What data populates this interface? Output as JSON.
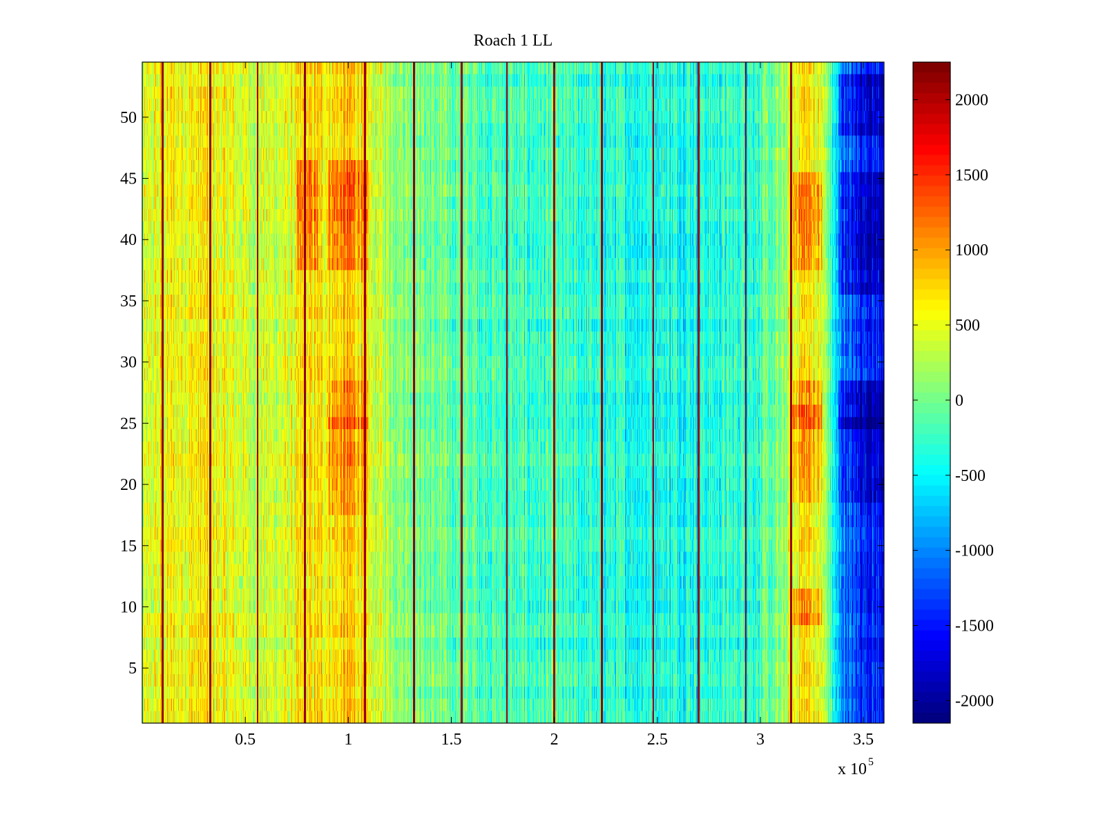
{
  "chart_data": {
    "type": "heatmap",
    "title": "Roach 1 LL",
    "xlabel": "",
    "ylabel": "",
    "x_multiplier_label": "x 10",
    "x_multiplier_exponent": "5",
    "xlim": [
      0,
      3.6
    ],
    "ylim": [
      0.5,
      54.5
    ],
    "x_ticks": [
      0.5,
      1,
      1.5,
      2,
      2.5,
      3,
      3.5
    ],
    "x_tick_labels": [
      "0.5",
      "1",
      "1.5",
      "2",
      "2.5",
      "3",
      "3.5"
    ],
    "y_ticks": [
      5,
      10,
      15,
      20,
      25,
      30,
      35,
      40,
      45,
      50
    ],
    "y_tick_labels": [
      "5",
      "10",
      "15",
      "20",
      "25",
      "30",
      "35",
      "40",
      "45",
      "50"
    ],
    "rows": 54,
    "colormap": "jet",
    "clim": [
      -2150,
      2250
    ],
    "colorbar_ticks": [
      2000,
      1500,
      1000,
      500,
      0,
      -500,
      -1000,
      -1500,
      -2000
    ],
    "colorbar_tick_labels": [
      "2000",
      "1500",
      "1000",
      "500",
      "0",
      "-500",
      "-1000",
      "-1500",
      "-2000"
    ],
    "column_profile": {
      "x": [
        0.0,
        0.1,
        0.2,
        0.3,
        0.4,
        0.55,
        0.7,
        0.8,
        0.95,
        1.0,
        1.05,
        1.1,
        1.25,
        1.4,
        1.6,
        1.8,
        2.0,
        2.2,
        2.4,
        2.6,
        2.8,
        3.0,
        3.1,
        3.15,
        3.2,
        3.25,
        3.3,
        3.33,
        3.38,
        3.45,
        3.55,
        3.6
      ],
      "mean": [
        300,
        550,
        600,
        650,
        500,
        380,
        420,
        650,
        700,
        800,
        700,
        450,
        150,
        -50,
        -150,
        -250,
        -300,
        -350,
        -400,
        -380,
        -350,
        -250,
        0,
        400,
        700,
        650,
        350,
        0,
        -900,
        -1300,
        -1500,
        -1500
      ]
    },
    "high_stripes_x": [
      0.1,
      0.33,
      0.56,
      0.79,
      1.08,
      1.32,
      1.55,
      1.77,
      2.0,
      2.23,
      2.48,
      2.7,
      2.93,
      3.15
    ],
    "high_stripe_value": 2150,
    "high_band_rows": [
      {
        "x0": 0.75,
        "x1": 0.85,
        "y0": 38,
        "y1": 46,
        "delta": 500
      },
      {
        "x0": 0.9,
        "x1": 1.1,
        "y0": 38,
        "y1": 46,
        "delta": 500
      },
      {
        "x0": 0.9,
        "x1": 1.1,
        "y0": 25,
        "y1": 28,
        "delta": 400
      },
      {
        "x0": 0.9,
        "x1": 1.1,
        "y0": 18,
        "y1": 25,
        "delta": 300
      },
      {
        "x0": 3.15,
        "x1": 3.3,
        "y0": 38,
        "y1": 45,
        "delta": 500
      },
      {
        "x0": 3.15,
        "x1": 3.3,
        "y0": 25,
        "y1": 28,
        "delta": 450
      },
      {
        "x0": 3.15,
        "x1": 3.3,
        "y0": 9,
        "y1": 11,
        "delta": 450
      },
      {
        "x0": 3.15,
        "x1": 3.3,
        "y0": 19,
        "y1": 26,
        "delta": 350
      }
    ],
    "low_band_rows": [
      {
        "x0": 3.38,
        "x1": 3.6,
        "y0": 49,
        "y1": 53,
        "delta": -400
      },
      {
        "x0": 3.38,
        "x1": 3.6,
        "y0": 36,
        "y1": 45,
        "delta": -400
      },
      {
        "x0": 3.38,
        "x1": 3.6,
        "y0": 25,
        "y1": 28,
        "delta": -450
      },
      {
        "x0": 3.38,
        "x1": 3.6,
        "y0": 19,
        "y1": 25,
        "delta": -300
      }
    ]
  }
}
